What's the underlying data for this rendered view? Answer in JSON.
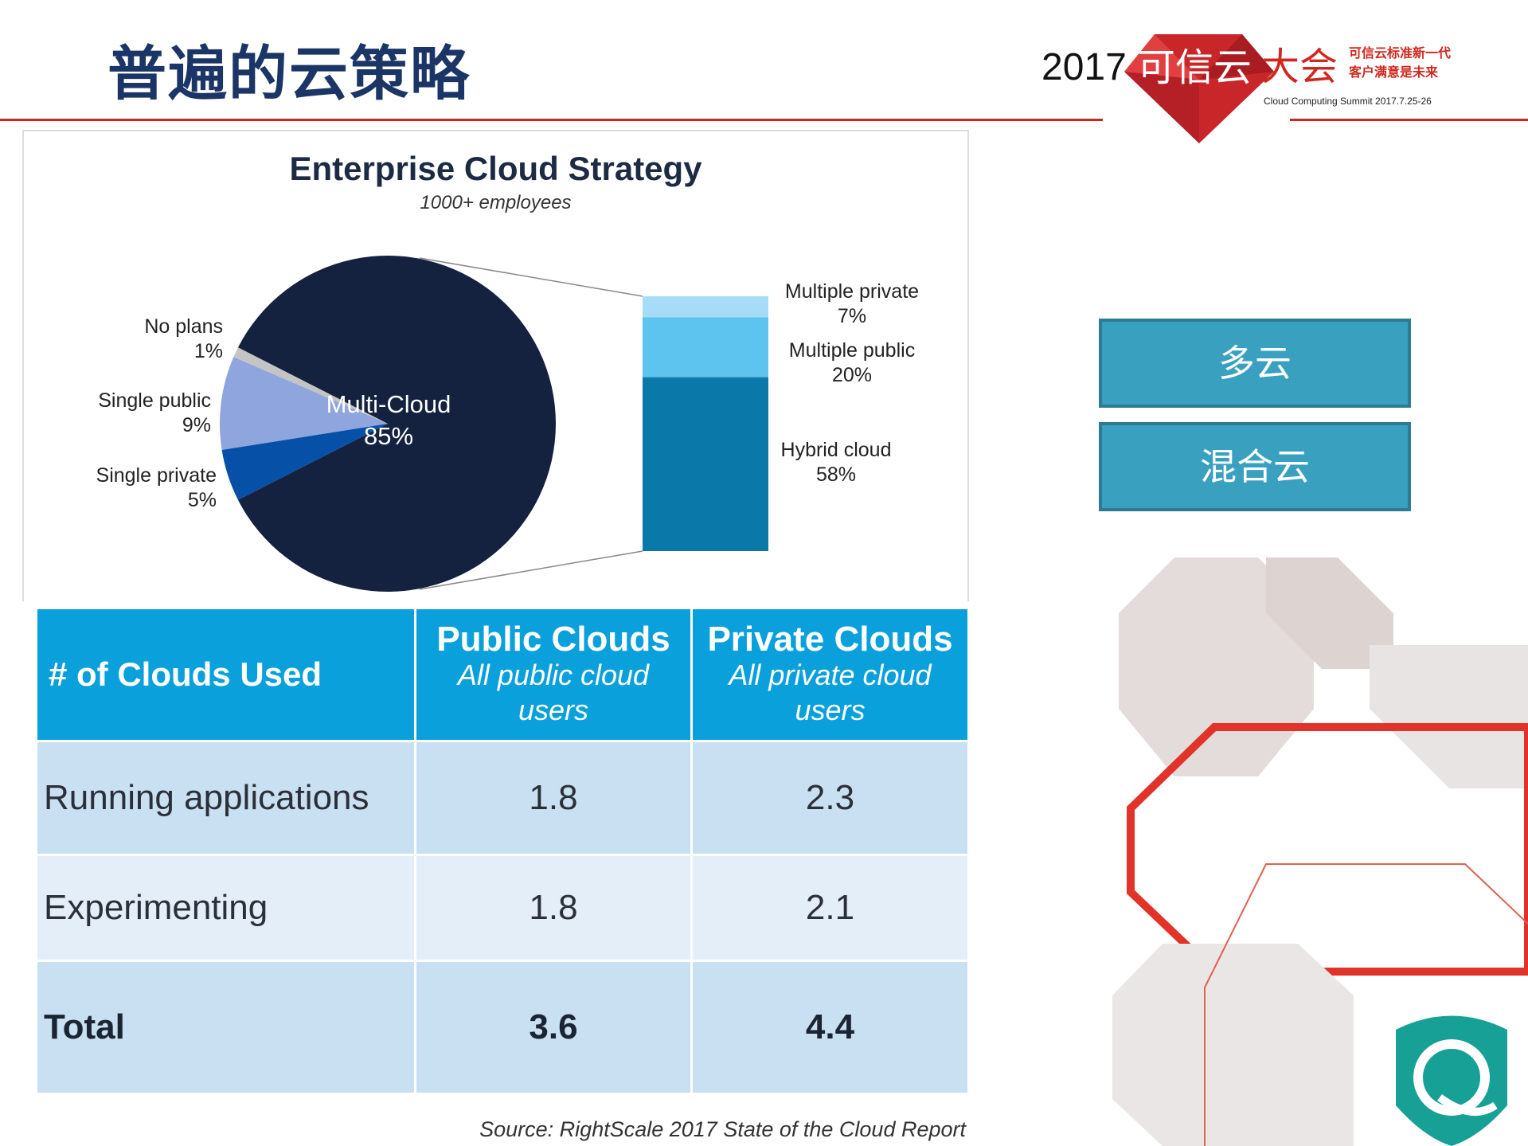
{
  "slide_title": "普遍的云策略",
  "logo": {
    "year": "2017",
    "name_white": "可信云",
    "name_red": "大会",
    "slogan_1": "可信云标准新一代",
    "slogan_2": "客户满意是未来",
    "subtitle": "Cloud Computing Summit 2017.7.25-26"
  },
  "buttons": [
    {
      "label": "多云"
    },
    {
      "label": "混合云"
    }
  ],
  "colors": {
    "accent_red": "#c8281e",
    "title_blue": "#1b3566",
    "button": "#3aa0c0",
    "table_header": "#0aa0dc"
  },
  "chart_data": [
    {
      "type": "pie",
      "title": "Enterprise Cloud Strategy",
      "subtitle": "1000+ employees",
      "slices": [
        {
          "name": "Multi-Cloud",
          "value": 85,
          "label": "85%",
          "color": "#14213f"
        },
        {
          "name": "No plans",
          "value": 1,
          "label": "1%",
          "color": "#c4c4c4"
        },
        {
          "name": "Single public",
          "value": 9,
          "label": "9%",
          "color": "#8ea6dd"
        },
        {
          "name": "Single private",
          "value": 5,
          "label": "5%",
          "color": "#0750a8"
        }
      ],
      "breakdown_bar": {
        "of": "Multi-Cloud",
        "segments": [
          {
            "name": "Multiple private",
            "value": 7,
            "label": "7%",
            "color": "#a6dcf5"
          },
          {
            "name": "Multiple public",
            "value": 20,
            "label": "20%",
            "color": "#5cc4ee"
          },
          {
            "name": "Hybrid cloud",
            "value": 58,
            "label": "58%",
            "color": "#0a78a8"
          }
        ]
      }
    },
    {
      "type": "table",
      "columns": [
        {
          "title": "# of Clouds Used",
          "subtitle": ""
        },
        {
          "title": "Public Clouds",
          "subtitle": "All public cloud users"
        },
        {
          "title": "Private Clouds",
          "subtitle": "All private cloud users"
        }
      ],
      "rows": [
        [
          "Running applications",
          "1.8",
          "2.3"
        ],
        [
          "Experimenting",
          "1.8",
          "2.1"
        ],
        [
          "Total",
          "3.6",
          "4.4"
        ]
      ]
    }
  ],
  "source": "Source: RightScale 2017 State of the Cloud Report"
}
